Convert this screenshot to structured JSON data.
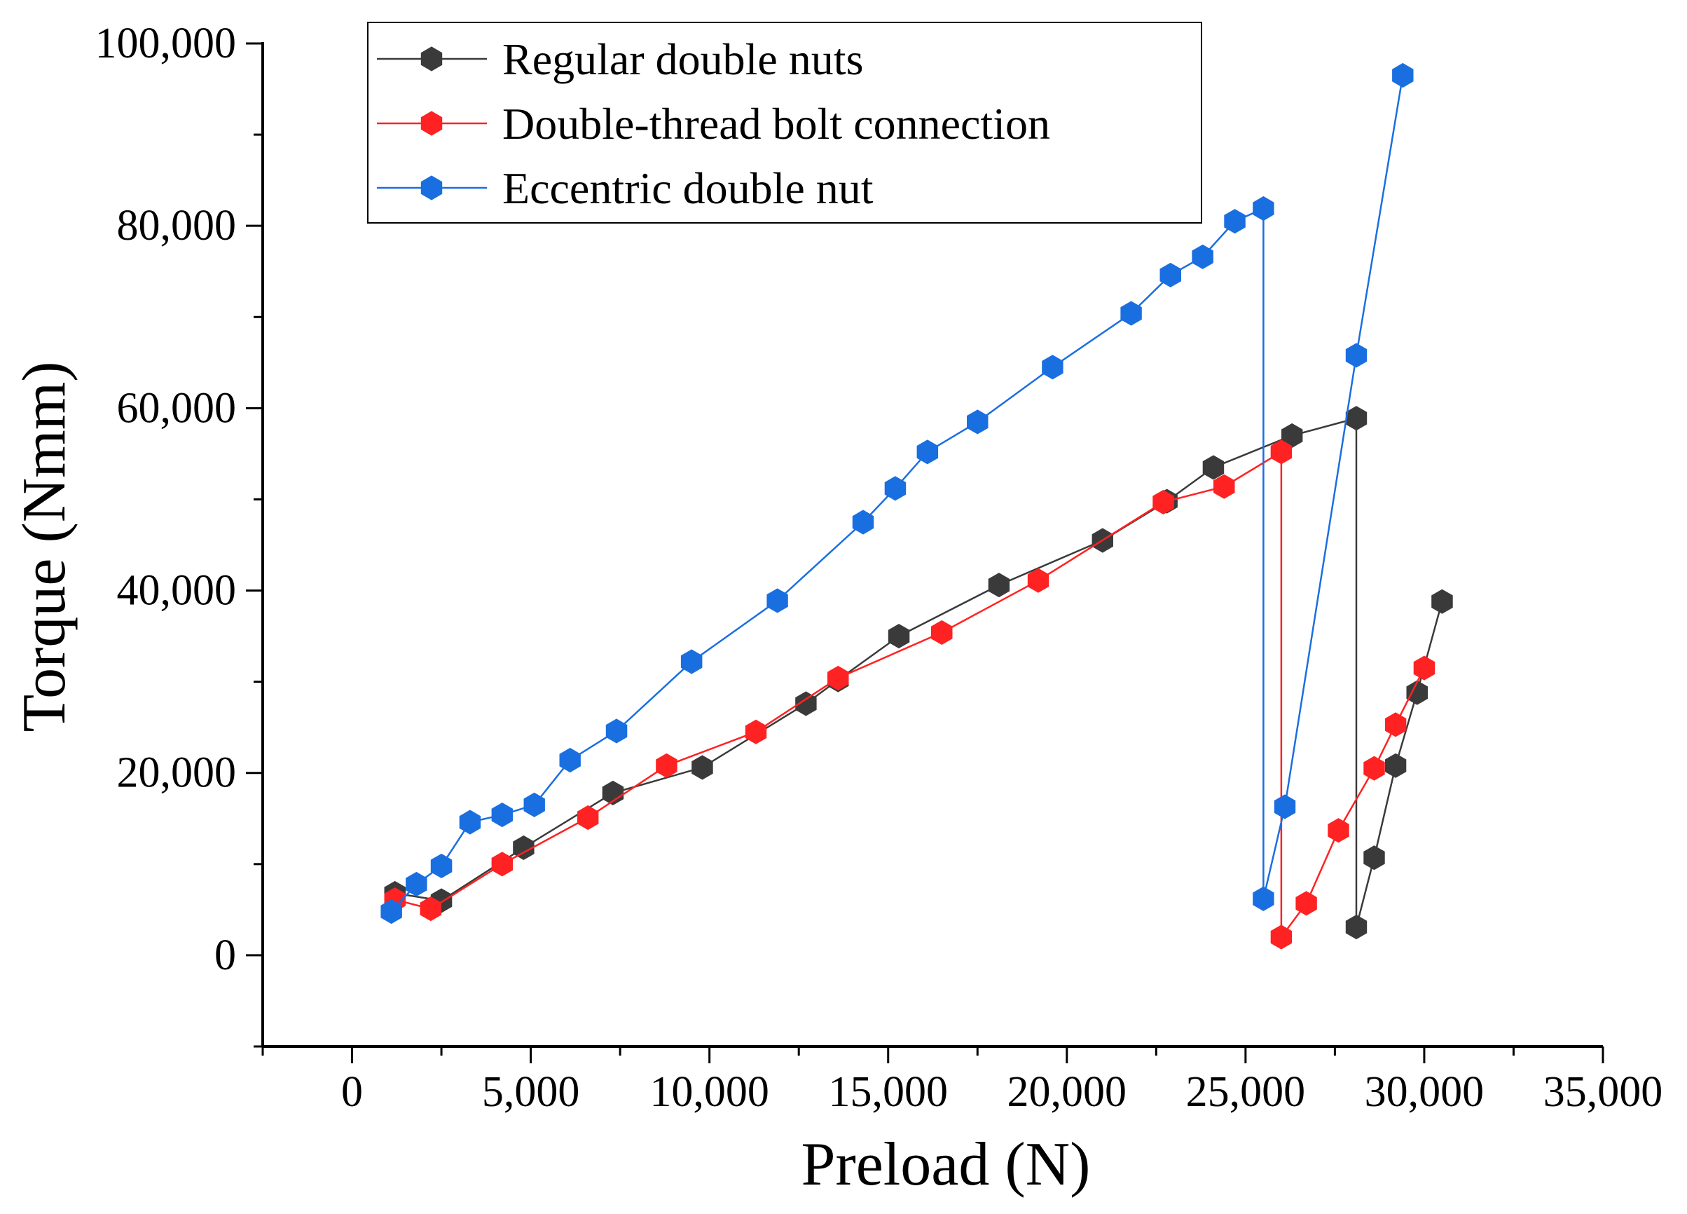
{
  "chart_data": {
    "type": "line",
    "title": "",
    "xlabel": "Preload (N)",
    "ylabel": "Torque (Nmm)",
    "xlim": [
      -2500,
      35000
    ],
    "ylim": [
      -10000,
      100000
    ],
    "xticks": [
      0,
      5000,
      10000,
      15000,
      20000,
      25000,
      30000,
      35000
    ],
    "xtick_labels": [
      "0",
      "5,000",
      "10,000",
      "15,000",
      "20,000",
      "25,000",
      "30,000",
      "35,000"
    ],
    "yticks": [
      0,
      20000,
      40000,
      60000,
      80000,
      100000
    ],
    "ytick_labels": [
      "0",
      "20,000",
      "40,000",
      "60,000",
      "80,000",
      "100,000"
    ],
    "grid": false,
    "legend_position": "top-left",
    "series": [
      {
        "name": "Regular double nuts",
        "color": "#3a3a3a",
        "marker": "hexagon",
        "points": [
          [
            1200,
            6800
          ],
          [
            2500,
            6000
          ],
          [
            4800,
            11800
          ],
          [
            7300,
            17800
          ],
          [
            9800,
            20600
          ],
          [
            12700,
            27600
          ],
          [
            13600,
            30200
          ],
          [
            15300,
            35000
          ],
          [
            18100,
            40600
          ],
          [
            21000,
            45500
          ],
          [
            22800,
            49800
          ],
          [
            24100,
            53500
          ],
          [
            26300,
            57000
          ],
          [
            28100,
            58900
          ],
          [
            28100,
            3100
          ],
          [
            28600,
            10700
          ],
          [
            29200,
            20800
          ],
          [
            29800,
            28800
          ],
          [
            30500,
            38800
          ]
        ]
      },
      {
        "name": "Double-thread bolt connection",
        "color": "#ff2222",
        "marker": "hexagon",
        "points": [
          [
            1200,
            6100
          ],
          [
            2200,
            5100
          ],
          [
            4200,
            10000
          ],
          [
            6600,
            15100
          ],
          [
            8800,
            20800
          ],
          [
            11300,
            24500
          ],
          [
            13600,
            30400
          ],
          [
            16500,
            35400
          ],
          [
            19200,
            41100
          ],
          [
            22700,
            49700
          ],
          [
            24400,
            51400
          ],
          [
            26000,
            55200
          ],
          [
            26000,
            2000
          ],
          [
            26700,
            5700
          ],
          [
            27600,
            13700
          ],
          [
            28600,
            20500
          ],
          [
            29200,
            25300
          ],
          [
            30000,
            31500
          ]
        ]
      },
      {
        "name": "Eccentric double nut",
        "color": "#1a6fe0",
        "marker": "hexagon",
        "points": [
          [
            1100,
            4800
          ],
          [
            1800,
            7800
          ],
          [
            2500,
            9800
          ],
          [
            3300,
            14600
          ],
          [
            4200,
            15400
          ],
          [
            5100,
            16500
          ],
          [
            6100,
            21400
          ],
          [
            7400,
            24600
          ],
          [
            9500,
            32200
          ],
          [
            11900,
            38900
          ],
          [
            14300,
            47500
          ],
          [
            15200,
            51200
          ],
          [
            16100,
            55200
          ],
          [
            17500,
            58500
          ],
          [
            19600,
            64500
          ],
          [
            21800,
            70400
          ],
          [
            22900,
            74600
          ],
          [
            23800,
            76600
          ],
          [
            24700,
            80500
          ],
          [
            25500,
            81900
          ],
          [
            25500,
            6200
          ],
          [
            26100,
            16300
          ],
          [
            28100,
            65800
          ],
          [
            29400,
            96500
          ]
        ]
      }
    ]
  }
}
